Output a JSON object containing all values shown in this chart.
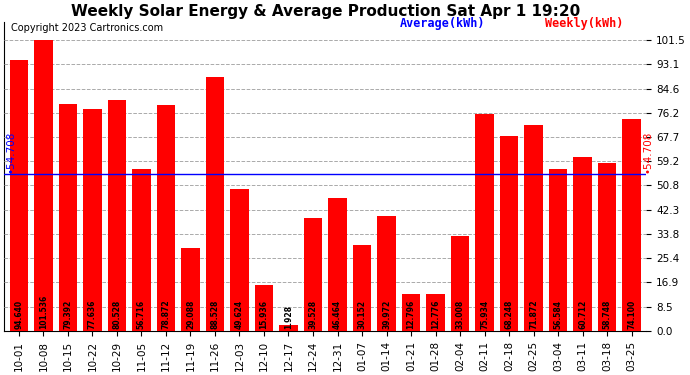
{
  "title": "Weekly Solar Energy & Average Production Sat Apr 1 19:20",
  "copyright": "Copyright 2023 Cartronics.com",
  "legend_avg": "Average(kWh)",
  "legend_weekly": "Weekly(kWh)",
  "average_value": 54.708,
  "categories": [
    "10-01",
    "10-08",
    "10-15",
    "10-22",
    "10-29",
    "11-05",
    "11-12",
    "11-19",
    "11-26",
    "12-03",
    "12-10",
    "12-17",
    "12-24",
    "12-31",
    "01-07",
    "01-14",
    "01-21",
    "01-28",
    "02-04",
    "02-11",
    "02-18",
    "02-25",
    "03-04",
    "03-11",
    "03-18",
    "03-25"
  ],
  "values": [
    94.64,
    101.536,
    79.392,
    77.636,
    80.528,
    56.716,
    78.872,
    29.088,
    88.528,
    49.624,
    15.936,
    1.928,
    39.528,
    46.464,
    30.152,
    39.972,
    12.796,
    12.776,
    33.008,
    75.934,
    68.248,
    71.872,
    56.584,
    60.712,
    58.748,
    74.1
  ],
  "bar_color": "#ff0000",
  "avg_line_color": "#0000ff",
  "avg_label_color": "#0000ff",
  "weekly_label_color": "#ff0000",
  "background_color": "#ffffff",
  "grid_color": "#aaaaaa",
  "title_color": "#000000",
  "copyright_color": "#000000",
  "yticks": [
    0.0,
    8.5,
    16.9,
    25.4,
    33.8,
    42.3,
    50.8,
    59.2,
    67.7,
    76.2,
    84.6,
    93.1,
    101.5
  ],
  "ymax": 108,
  "title_fontsize": 11,
  "bar_label_fontsize": 5.5,
  "tick_fontsize": 7.5,
  "avg_label_fontsize": 7.5,
  "copyright_fontsize": 7
}
